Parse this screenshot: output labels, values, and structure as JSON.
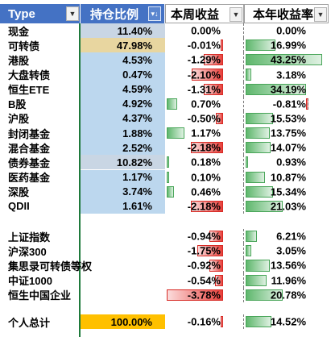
{
  "header": {
    "type": "Type",
    "holding_ratio": "持仓比例",
    "weekly_return": "本周收益",
    "yearly_return": "本年收益率"
  },
  "rows": [
    {
      "name": "现金",
      "ratio": "11.40%",
      "ratio_bg": "#c9d6e4",
      "week": "0.00%",
      "week_v": 0.0,
      "year": "0.00%",
      "year_v": 0.0
    },
    {
      "name": "可转债",
      "ratio": "47.98%",
      "ratio_bg": "#e8d6a0",
      "week": "-0.01%",
      "week_v": -0.01,
      "year": "16.99%",
      "year_v": 16.99
    },
    {
      "name": "港股",
      "ratio": "4.53%",
      "ratio_bg": "#bcd7ee",
      "week": "-1.29%",
      "week_v": -1.29,
      "year": "43.25%",
      "year_v": 43.25
    },
    {
      "name": "大盘转债",
      "ratio": "0.47%",
      "ratio_bg": "#bcd7ee",
      "week": "-2.10%",
      "week_v": -2.1,
      "year": "3.18%",
      "year_v": 3.18
    },
    {
      "name": "恒生ETE",
      "ratio": "4.59%",
      "ratio_bg": "#bcd7ee",
      "week": "-1.31%",
      "week_v": -1.31,
      "year": "34.19%",
      "year_v": 34.19
    },
    {
      "name": "B股",
      "ratio": "4.92%",
      "ratio_bg": "#bcd7ee",
      "week": "0.70%",
      "week_v": 0.7,
      "year": "-0.81%",
      "year_v": -0.81
    },
    {
      "name": "沪股",
      "ratio": "4.37%",
      "ratio_bg": "#bcd7ee",
      "week": "-0.50%",
      "week_v": -0.5,
      "year": "15.53%",
      "year_v": 15.53
    },
    {
      "name": "封闭基金",
      "ratio": "1.88%",
      "ratio_bg": "#bcd7ee",
      "week": "1.17%",
      "week_v": 1.17,
      "year": "13.75%",
      "year_v": 13.75
    },
    {
      "name": "混合基金",
      "ratio": "2.52%",
      "ratio_bg": "#bcd7ee",
      "week": "-2.18%",
      "week_v": -2.18,
      "year": "14.07%",
      "year_v": 14.07
    },
    {
      "name": "债券基金",
      "ratio": "10.82%",
      "ratio_bg": "#c9d6e4",
      "week": "0.18%",
      "week_v": 0.18,
      "year": "0.93%",
      "year_v": 0.93
    },
    {
      "name": "医药基金",
      "ratio": "1.17%",
      "ratio_bg": "#bcd7ee",
      "week": "0.10%",
      "week_v": 0.1,
      "year": "10.87%",
      "year_v": 10.87
    },
    {
      "name": "深股",
      "ratio": "3.74%",
      "ratio_bg": "#bcd7ee",
      "week": "0.46%",
      "week_v": 0.46,
      "year": "15.34%",
      "year_v": 15.34
    },
    {
      "name": "QDII",
      "ratio": "1.61%",
      "ratio_bg": "#bcd7ee",
      "week": "-2.18%",
      "week_v": -2.18,
      "year": "21.03%",
      "year_v": 21.03
    }
  ],
  "index_rows": [
    {
      "name": "上证指数",
      "week": "-0.94%",
      "week_v": -0.94,
      "year": "6.21%",
      "year_v": 6.21
    },
    {
      "name": "沪深300",
      "week": "-1.75%",
      "week_v": -1.75,
      "year": "3.05%",
      "year_v": 3.05
    },
    {
      "name": "集思录可转债等权",
      "week": "-0.92%",
      "week_v": -0.92,
      "year": "13.56%",
      "year_v": 13.56
    },
    {
      "name": "中证1000",
      "week": "-0.54%",
      "week_v": -0.54,
      "year": "11.96%",
      "year_v": 11.96
    },
    {
      "name": "恒生中国企业",
      "week": "-3.78%",
      "week_v": -3.78,
      "year": "20.78%",
      "year_v": 20.78
    }
  ],
  "total_row": {
    "name": "个人总计",
    "ratio": "100.00%",
    "ratio_bg": "#ffc000",
    "week": "-0.16%",
    "week_v": -0.16,
    "year": "14.52%",
    "year_v": 14.52
  },
  "colors": {
    "header_bg": "#4472c4",
    "pos_bar": "#5fb76d",
    "neg_bar": "#e8413c"
  }
}
